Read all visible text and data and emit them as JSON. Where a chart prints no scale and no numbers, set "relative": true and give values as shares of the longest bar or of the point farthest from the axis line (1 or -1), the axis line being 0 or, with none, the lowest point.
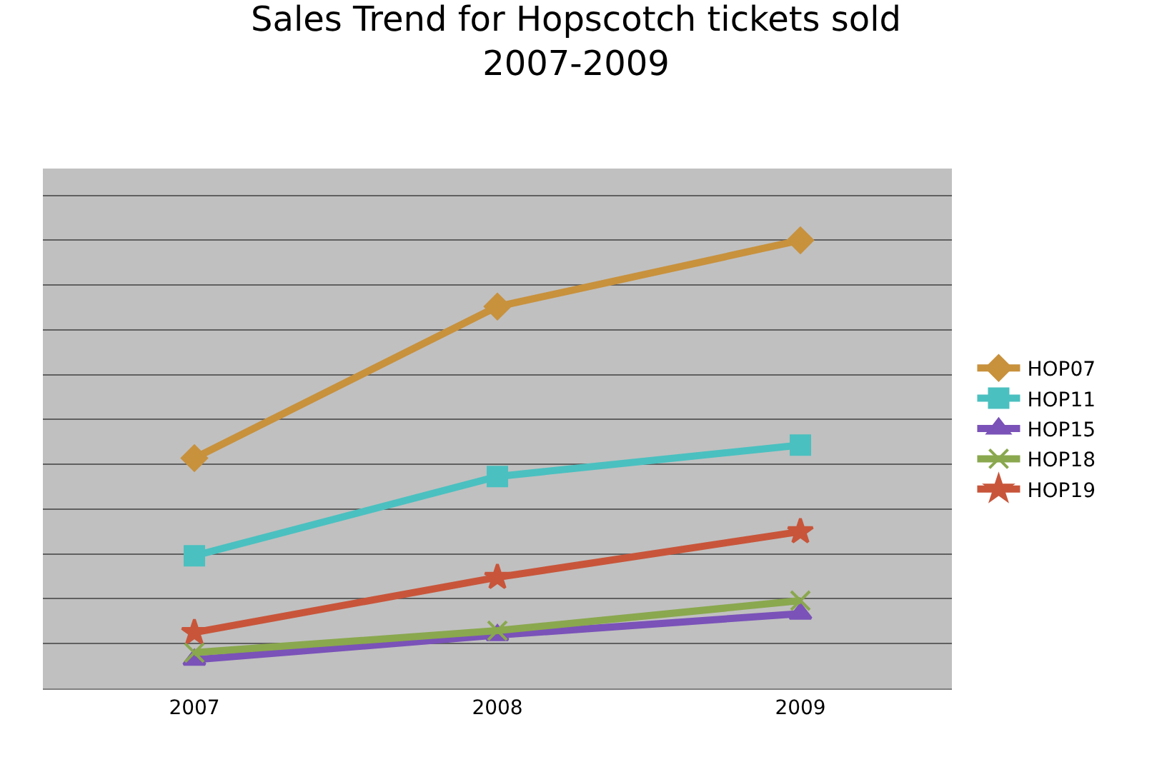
{
  "chart_data": {
    "type": "line",
    "title": "Sales Trend for Hopscotch tickets sold\n2007-2009",
    "categories": [
      "2007",
      "2008",
      "2009"
    ],
    "relative": true,
    "grid": "y",
    "legend": "right",
    "line_style": "solid",
    "series": [
      {
        "name": "HOP07",
        "color": "#c8913c",
        "marker": "diamond",
        "values": [
          0.514,
          0.852,
          1
        ]
      },
      {
        "name": "HOP11",
        "color": "#4bc0c0",
        "marker": "square",
        "values": [
          0.296,
          0.473,
          0.543
        ]
      },
      {
        "name": "HOP15",
        "color": "#7a52b8",
        "marker": "triangle",
        "values": [
          0.064,
          0.119,
          0.167
        ]
      },
      {
        "name": "HOP18",
        "color": "#8aa84e",
        "marker": "cross",
        "values": [
          0.08,
          0.129,
          0.196
        ]
      },
      {
        "name": "HOP19",
        "color": "#c8553a",
        "marker": "star",
        "values": [
          0.125,
          0.248,
          0.35
        ]
      }
    ]
  }
}
